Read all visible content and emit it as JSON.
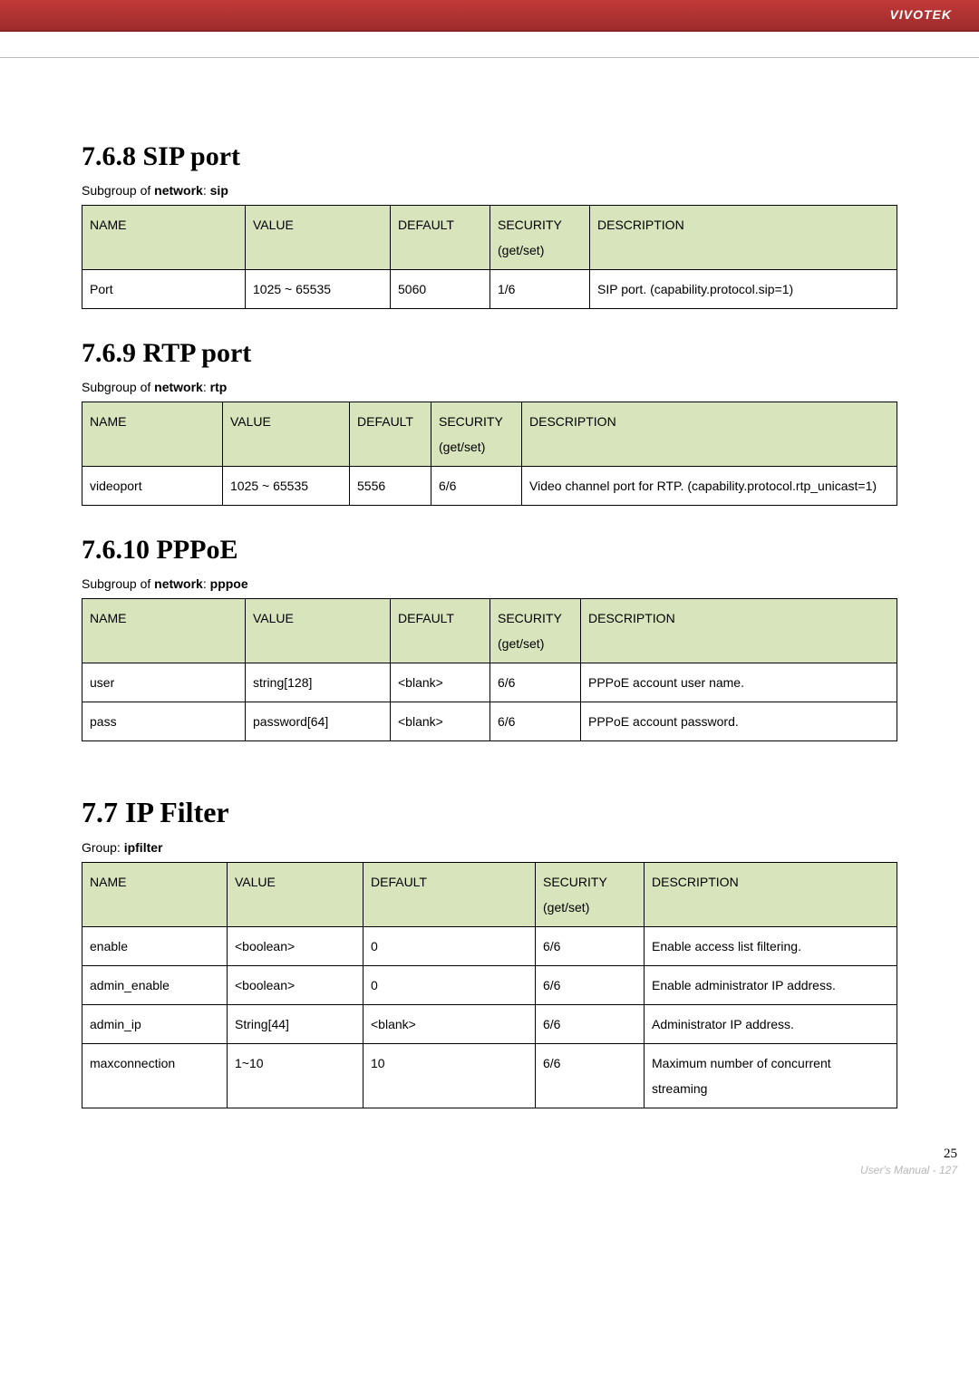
{
  "brand": "VIVOTEK",
  "pageInner": "25",
  "pageOuter": "User's Manual - 127",
  "sections": [
    {
      "heading": "7.6.8 SIP port",
      "subPrefix": "Subgroup of ",
      "subBold1": "network",
      "subMid": ": ",
      "subBold2": "sip",
      "cols": [
        180,
        160,
        110,
        110,
        0
      ],
      "header": [
        "NAME",
        "VALUE",
        "DEFAULT",
        "SECURITY (get/set)",
        "DESCRIPTION"
      ],
      "rows": [
        [
          "Port",
          "1025 ~ 65535",
          "5060",
          "1/6",
          "SIP port. (capability.protocol.sip=1)"
        ]
      ]
    },
    {
      "heading": "7.6.9 RTP port",
      "subPrefix": "Subgroup of ",
      "subBold1": "network",
      "subMid": ": ",
      "subBold2": "rtp",
      "cols": [
        155,
        140,
        90,
        100,
        0
      ],
      "header": [
        "NAME",
        "VALUE",
        "DEFAULT",
        "SECURITY (get/set)",
        "DESCRIPTION"
      ],
      "rows": [
        [
          "videoport",
          "1025 ~ 65535",
          "5556",
          "6/6",
          "Video channel port for RTP. (capability.protocol.rtp_unicast=1)"
        ]
      ]
    },
    {
      "heading": "7.6.10 PPPoE",
      "subPrefix": "Subgroup of ",
      "subBold1": "network",
      "subMid": ": ",
      "subBold2": "pppoe",
      "cols": [
        180,
        160,
        110,
        100,
        0
      ],
      "header": [
        "NAME",
        "VALUE",
        "DEFAULT",
        "SECURITY (get/set)",
        "DESCRIPTION"
      ],
      "rows": [
        [
          "user",
          "string[128]",
          "<blank>",
          "6/6",
          "PPPoE account user name."
        ],
        [
          "pass",
          "password[64]",
          "<blank>",
          "6/6",
          "PPPoE account password."
        ]
      ]
    }
  ],
  "section2": {
    "heading": "7.7 IP Filter",
    "subPrefix": "Group: ",
    "subBold1": "ipfilter",
    "cols": [
      160,
      150,
      190,
      120,
      0
    ],
    "header": [
      "NAME",
      "VALUE",
      "DEFAULT",
      "SECURITY (get/set)",
      "DESCRIPTION"
    ],
    "rows": [
      [
        "enable",
        "<boolean>",
        "0",
        "6/6",
        "Enable access list filtering."
      ],
      [
        "admin_enable",
        "<boolean>",
        "0",
        "6/6",
        "Enable administrator IP address."
      ],
      [
        "admin_ip",
        "String[44]",
        "<blank>",
        "6/6",
        "Administrator IP address."
      ],
      [
        "maxconnection",
        "1~10",
        "10",
        "6/6",
        "Maximum number of concurrent streaming"
      ]
    ]
  }
}
